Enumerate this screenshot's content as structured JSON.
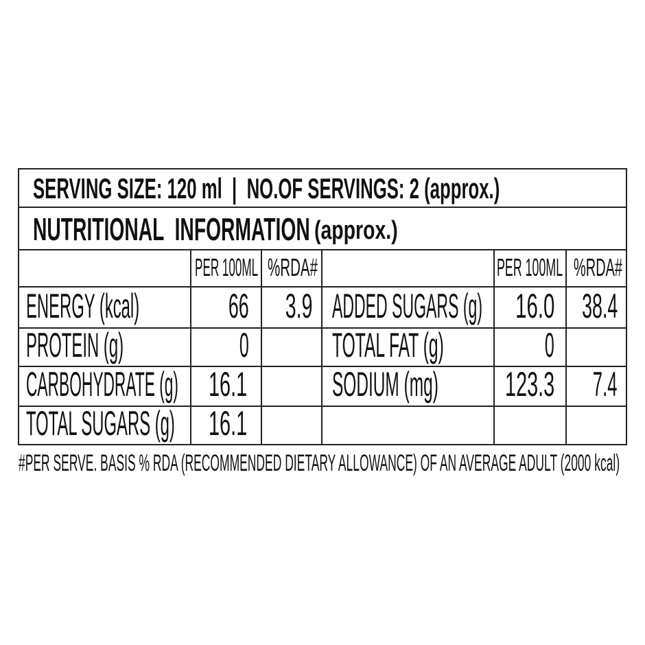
{
  "serving_line": "SERVING SIZE: 120 ml  |  NO.OF SERVINGS: 2 (approx.)",
  "title": "NUTRITIONAL  INFORMATION",
  "title_suffix": "(approx.)",
  "column_headers": {
    "per_100ml": "PER 100ML",
    "rda": "%RDA#"
  },
  "left_rows": [
    {
      "label": "ENERGY (kcal)",
      "per_100ml": "66",
      "rda": "3.9"
    },
    {
      "label": "PROTEIN (g)",
      "per_100ml": "0",
      "rda": ""
    },
    {
      "label": "CARBOHYDRATE (g)",
      "per_100ml": "16.1",
      "rda": ""
    },
    {
      "label": "TOTAL SUGARS (g)",
      "per_100ml": "16.1",
      "rda": ""
    }
  ],
  "right_rows": [
    {
      "label": "ADDED SUGARS (g)",
      "per_100ml": "16.0",
      "rda": "38.4"
    },
    {
      "label": "TOTAL FAT (g)",
      "per_100ml": "0",
      "rda": ""
    },
    {
      "label": "SODIUM (mg)",
      "per_100ml": "123.3",
      "rda": "7.4"
    }
  ],
  "footnote": "#PER SERVE. BASIS % RDA (RECOMMENDED DIETARY ALLOWANCE) OF AN AVERAGE ADULT (2000 kcal)"
}
